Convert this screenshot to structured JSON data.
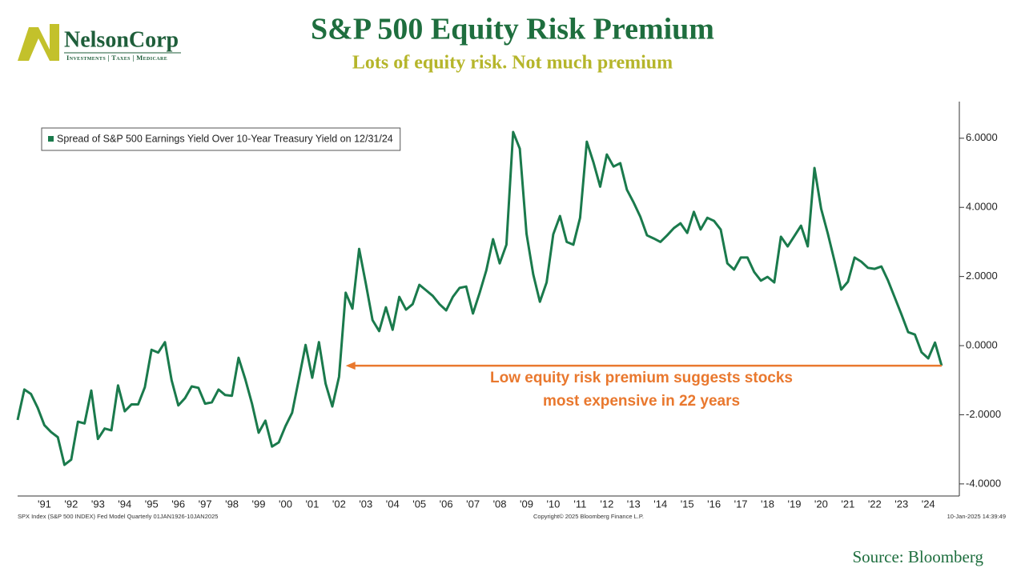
{
  "brand": {
    "name": "NelsonCorp",
    "tagline": "Investments | Taxes | Medicare"
  },
  "chart_data": {
    "type": "line",
    "title": "S&P 500 Equity Risk Premium",
    "subtitle": "Lots of equity risk. Not much premium",
    "annotation": [
      "Low equity risk premium suggests stocks",
      "most expensive in 22 years"
    ],
    "footer_left": "SPX Index (S&P 500 INDEX) Fed Model  Quarterly 01JAN1926-10JAN2025",
    "footer_center": "Copyright© 2025 Bloomberg Finance L.P.",
    "footer_right": "10-Jan-2025 14:39:49",
    "source": "Source: Bloomberg",
    "legend": "top-left",
    "x": [
      1990.5,
      1990.75,
      1991,
      1991.25,
      1991.5,
      1991.75,
      1992,
      1992.25,
      1992.5,
      1992.75,
      1993,
      1993.25,
      1993.5,
      1993.75,
      1994,
      1994.25,
      1994.5,
      1994.75,
      1995,
      1995.25,
      1995.5,
      1995.75,
      1996,
      1996.25,
      1996.5,
      1996.75,
      1997,
      1997.25,
      1997.5,
      1997.75,
      1998,
      1998.25,
      1998.5,
      1998.75,
      1999,
      1999.25,
      1999.5,
      1999.75,
      2000,
      2000.25,
      2000.5,
      2000.75,
      2001,
      2001.25,
      2001.5,
      2001.75,
      2002,
      2002.25,
      2002.5,
      2002.75,
      2003,
      2003.25,
      2003.5,
      2003.75,
      2004,
      2004.25,
      2004.5,
      2004.75,
      2005,
      2005.25,
      2005.5,
      2005.75,
      2006,
      2006.25,
      2006.5,
      2006.75,
      2007,
      2007.25,
      2007.5,
      2007.75,
      2008,
      2008.25,
      2008.5,
      2008.75,
      2009,
      2009.25,
      2009.5,
      2009.75,
      2010,
      2010.25,
      2010.5,
      2010.75,
      2011,
      2011.25,
      2011.5,
      2011.75,
      2012,
      2012.25,
      2012.5,
      2012.75,
      2013,
      2013.25,
      2013.5,
      2013.75,
      2014,
      2014.25,
      2014.5,
      2014.75,
      2015,
      2015.25,
      2015.5,
      2015.75,
      2016,
      2016.25,
      2016.5,
      2016.75,
      2017,
      2017.25,
      2017.5,
      2017.75,
      2018,
      2018.25,
      2018.5,
      2018.75,
      2019,
      2019.25,
      2019.5,
      2019.75,
      2020,
      2020.25,
      2020.5,
      2020.75,
      2021,
      2021.25,
      2021.5,
      2021.75,
      2022,
      2022.25,
      2022.5,
      2022.75,
      2023,
      2023.25,
      2023.5,
      2023.75,
      2024,
      2024.25,
      2024.5,
      2024.75,
      2025
    ],
    "series": [
      {
        "name": "Spread of S&P 500 Earnings Yield Over 10-Year Treasury Yield on 12/31/24",
        "color": "#1a7a4c",
        "values": [
          -2.15,
          -1.27,
          -1.4,
          -1.8,
          -2.3,
          -2.5,
          -2.65,
          -3.45,
          -3.3,
          -2.2,
          -2.25,
          -1.3,
          -2.7,
          -2.4,
          -2.45,
          -1.15,
          -1.9,
          -1.7,
          -1.7,
          -1.2,
          -0.12,
          -0.2,
          0.1,
          -1.0,
          -1.73,
          -1.52,
          -1.18,
          -1.22,
          -1.68,
          -1.64,
          -1.27,
          -1.43,
          -1.45,
          -0.35,
          -0.97,
          -1.68,
          -2.52,
          -2.17,
          -2.92,
          -2.8,
          -2.33,
          -1.94,
          -0.97,
          0.02,
          -0.93,
          0.1,
          -1.1,
          -1.76,
          -0.9,
          1.53,
          1.07,
          2.8,
          1.8,
          0.74,
          0.42,
          1.11,
          0.46,
          1.41,
          1.04,
          1.2,
          1.76,
          1.6,
          1.44,
          1.2,
          1.02,
          1.41,
          1.67,
          1.71,
          0.93,
          1.53,
          2.18,
          3.08,
          2.38,
          2.92,
          6.18,
          5.7,
          3.24,
          2.06,
          1.27,
          1.83,
          3.22,
          3.75,
          3.0,
          2.92,
          3.7,
          5.9,
          5.3,
          4.6,
          5.53,
          5.18,
          5.28,
          4.51,
          4.14,
          3.73,
          3.19,
          3.1,
          3.0,
          3.19,
          3.4,
          3.54,
          3.26,
          3.87,
          3.36,
          3.7,
          3.61,
          3.36,
          2.38,
          2.2,
          2.55,
          2.55,
          2.13,
          1.88,
          1.99,
          1.83,
          3.15,
          2.87,
          3.17,
          3.47,
          2.87,
          5.14,
          3.96,
          3.24,
          2.45,
          1.62,
          1.85,
          2.55,
          2.43,
          2.25,
          2.22,
          2.29,
          1.88,
          1.39,
          0.9,
          0.39,
          0.32,
          -0.19,
          -0.37,
          0.09,
          -0.58
        ]
      }
    ],
    "xlim": [
      1990.5,
      2025.66
    ],
    "xticks": [
      {
        "value": 1991.5,
        "label": "'91"
      },
      {
        "value": 1992.5,
        "label": "'92"
      },
      {
        "value": 1993.5,
        "label": "'93"
      },
      {
        "value": 1994.5,
        "label": "'94"
      },
      {
        "value": 1995.5,
        "label": "'95"
      },
      {
        "value": 1996.5,
        "label": "'96"
      },
      {
        "value": 1997.5,
        "label": "'97"
      },
      {
        "value": 1998.5,
        "label": "'98"
      },
      {
        "value": 1999.5,
        "label": "'99"
      },
      {
        "value": 2000.5,
        "label": "'00"
      },
      {
        "value": 2001.5,
        "label": "'01"
      },
      {
        "value": 2002.5,
        "label": "'02"
      },
      {
        "value": 2003.5,
        "label": "'03"
      },
      {
        "value": 2004.5,
        "label": "'04"
      },
      {
        "value": 2005.5,
        "label": "'05"
      },
      {
        "value": 2006.5,
        "label": "'06"
      },
      {
        "value": 2007.5,
        "label": "'07"
      },
      {
        "value": 2008.5,
        "label": "'08"
      },
      {
        "value": 2009.5,
        "label": "'09"
      },
      {
        "value": 2010.5,
        "label": "'10"
      },
      {
        "value": 2011.5,
        "label": "'11"
      },
      {
        "value": 2012.5,
        "label": "'12"
      },
      {
        "value": 2013.5,
        "label": "'13"
      },
      {
        "value": 2014.5,
        "label": "'14"
      },
      {
        "value": 2015.5,
        "label": "'15"
      },
      {
        "value": 2016.5,
        "label": "'16"
      },
      {
        "value": 2017.5,
        "label": "'17"
      },
      {
        "value": 2018.5,
        "label": "'18"
      },
      {
        "value": 2019.5,
        "label": "'19"
      },
      {
        "value": 2020.5,
        "label": "'20"
      },
      {
        "value": 2021.5,
        "label": "'21"
      },
      {
        "value": 2022.5,
        "label": "'22"
      },
      {
        "value": 2023.5,
        "label": "'23"
      },
      {
        "value": 2024.5,
        "label": "'24"
      }
    ],
    "ylim": [
      -4.35,
      7.06
    ],
    "yticks": [
      {
        "value": -4,
        "label": "-4.0000"
      },
      {
        "value": -2,
        "label": "-2.0000"
      },
      {
        "value": 0,
        "label": "0.0000"
      },
      {
        "value": 2,
        "label": "2.0000"
      },
      {
        "value": 4,
        "label": "4.0000"
      },
      {
        "value": 6,
        "label": "6.0000"
      }
    ],
    "grid": false
  }
}
